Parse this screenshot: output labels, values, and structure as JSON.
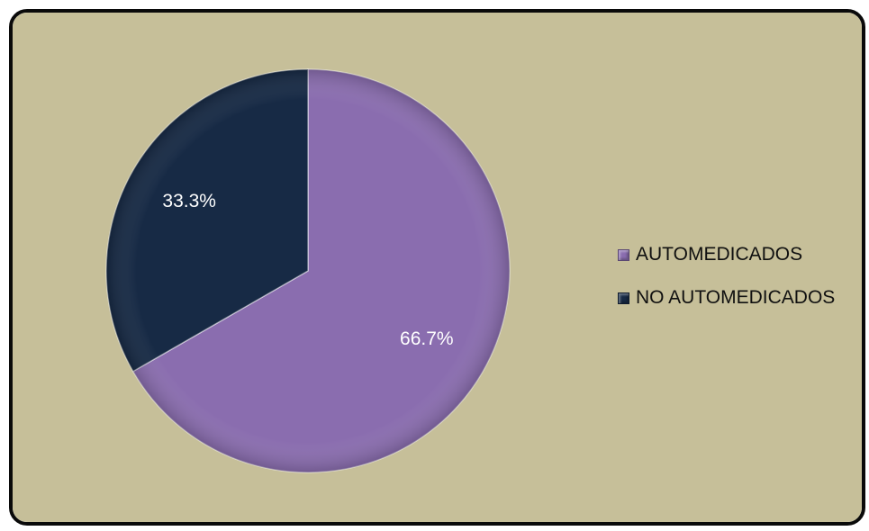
{
  "colors": {
    "background": "#c6bf99",
    "frame_border": "#0a0a0a"
  },
  "chart_data": {
    "type": "pie",
    "title": "",
    "categories": [
      "AUTOMEDICADOS",
      "NO AUTOMEDICADOS"
    ],
    "values": [
      66.7,
      33.3
    ],
    "labels": [
      "66.7%",
      "33.3%"
    ],
    "colors": [
      "#8a6daf",
      "#172a45"
    ],
    "legend": "right"
  }
}
